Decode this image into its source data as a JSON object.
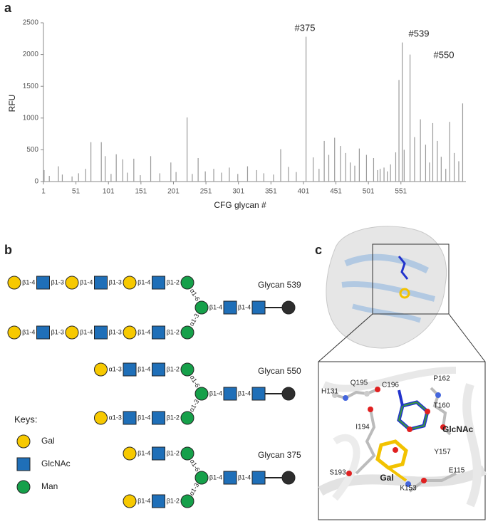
{
  "chart_data": {
    "type": "bar",
    "panel": "a",
    "xlabel": "CFG glycan #",
    "ylabel": "RFU",
    "x": [
      2,
      10,
      24,
      30,
      45,
      55,
      66,
      74,
      90,
      96,
      105,
      113,
      123,
      130,
      140,
      150,
      166,
      180,
      197,
      205,
      222,
      230,
      239,
      250,
      263,
      275,
      287,
      300,
      315,
      329,
      340,
      355,
      366,
      378,
      390,
      405,
      416,
      425,
      433,
      440,
      449,
      458,
      466,
      473,
      480,
      487,
      498,
      509,
      515,
      519,
      525,
      530,
      535,
      543,
      548,
      553,
      556,
      565,
      572,
      581,
      589,
      595,
      600,
      607,
      613,
      620,
      626,
      633,
      640,
      646
    ],
    "values": [
      180,
      90,
      240,
      110,
      80,
      130,
      200,
      620,
      620,
      400,
      120,
      430,
      350,
      140,
      360,
      100,
      400,
      130,
      300,
      150,
      1010,
      120,
      370,
      160,
      200,
      140,
      220,
      120,
      240,
      180,
      130,
      110,
      510,
      230,
      150,
      2280,
      380,
      200,
      640,
      420,
      690,
      560,
      450,
      300,
      250,
      520,
      420,
      370,
      180,
      200,
      220,
      160,
      270,
      460,
      1600,
      2190,
      500,
      2000,
      700,
      980,
      580,
      300,
      920,
      640,
      390,
      200,
      940,
      450,
      320,
      1230
    ],
    "color": "#9a9a9a",
    "xlim": [
      1,
      651
    ],
    "xticks": [
      1,
      51,
      101,
      151,
      201,
      251,
      301,
      351,
      401,
      451,
      501,
      551
    ],
    "ylim": [
      0,
      2500
    ],
    "yticks": [
      0,
      500,
      1000,
      1500,
      2000,
      2500
    ],
    "annotations": [
      "#375",
      "#539",
      "#550"
    ]
  },
  "panel_b": {
    "label": "b",
    "glycans": [
      {
        "name": "Glycan 539",
        "upper": [
          "β1-4",
          "β1-3",
          "β1-4",
          "β1-3",
          "β1-4",
          "β1-2"
        ],
        "lower": [
          "β1-4",
          "β1-3",
          "β1-4",
          "β1-3",
          "β1-4",
          "β1-2"
        ],
        "branch": [
          "α1-6",
          "α1-3"
        ],
        "core": [
          "β1-4",
          "β1-4"
        ]
      },
      {
        "name": "Glycan 550",
        "upper": [
          "α1-3",
          "β1-4",
          "β1-2"
        ],
        "lower": [
          "α1-3",
          "β1-4",
          "β1-2"
        ],
        "branch": [
          "α1-6",
          "α1-3"
        ],
        "core": [
          "β1-4",
          "β1-4"
        ]
      },
      {
        "name": "Glycan 375",
        "upper": [
          "β1-4",
          "β1-2"
        ],
        "lower": [
          "β1-4",
          "β1-2"
        ],
        "branch": [
          "α1-6",
          "α1-3"
        ],
        "core": [
          "β1-4",
          "β1-4"
        ]
      }
    ],
    "keys": {
      "title": "Keys:",
      "items": [
        "Gal",
        "GlcNAc",
        "Man"
      ]
    }
  },
  "panel_c": {
    "label": "c",
    "residues": [
      "H131",
      "Q195",
      "C196",
      "P162",
      "T160",
      "I194",
      "Y157",
      "S193",
      "E115",
      "K153"
    ],
    "sugars": [
      "GlcNAc",
      "Gal"
    ]
  }
}
